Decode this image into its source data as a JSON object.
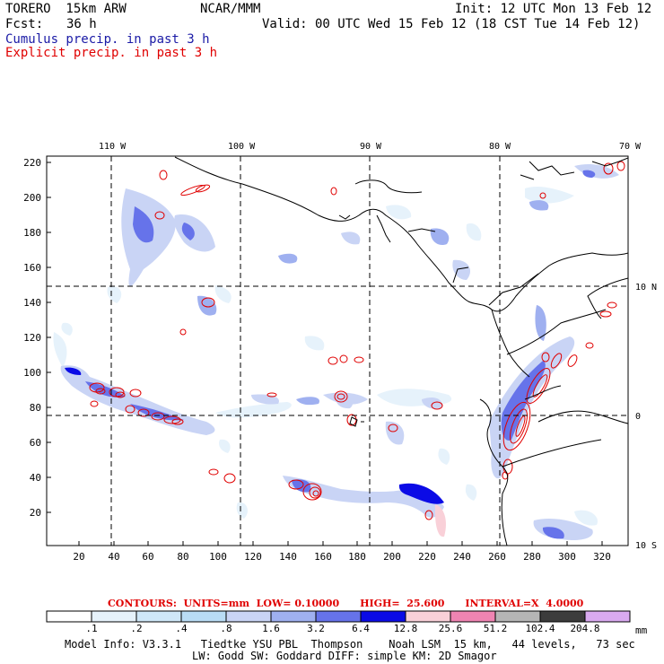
{
  "header": {
    "model": "TORERO  15km ARW",
    "org": "NCAR/MMM",
    "init": "Init: 12 UTC Mon 13 Feb 12",
    "fcst_label": "Fcst:",
    "fcst_value": "36 h",
    "valid": "Valid: 00 UTC Wed 15 Feb 12 (18 CST Tue 14 Feb 12)",
    "legend_cumulus": "Cumulus precip. in past 3 h",
    "legend_explicit": "Explicit precip. in past 3 h"
  },
  "map": {
    "lon_labels": [
      "110 W",
      "100 W",
      "90 W",
      "80 W",
      "70 W"
    ],
    "lat_labels": [
      "10 N",
      "0",
      "10 S"
    ],
    "y_ticks": [
      "220",
      "200",
      "180",
      "160",
      "140",
      "120",
      "100",
      "80",
      "60",
      "40",
      "20"
    ],
    "x_ticks": [
      "20",
      "40",
      "60",
      "80",
      "100",
      "120",
      "140",
      "160",
      "180",
      "200",
      "220",
      "240",
      "260",
      "280",
      "300",
      "320"
    ]
  },
  "colorbar": {
    "contours_text": "CONTOURS:  UNITS=mm  LOW= 0.10000      HIGH=  25.600      INTERVAL=X  4.0000",
    "labels": [
      ".1",
      ".2",
      ".4",
      ".8",
      "1.6",
      "3.2",
      "6.4",
      "12.8",
      "25.6",
      "51.2",
      "102.4",
      "204.8"
    ],
    "unit": "mm",
    "colors": [
      "#ffffff",
      "#e6f2fb",
      "#cfe7f8",
      "#b9dcf5",
      "#c9d4f5",
      "#9fb0f0",
      "#6673ea",
      "#0b0be6",
      "#f9d0d8",
      "#ef84b2",
      "#b5b5b5",
      "#3c3c3c",
      "#d9aaf0"
    ]
  },
  "footer": {
    "line1": "Model Info: V3.3.1   Tiedtke YSU PBL  Thompson    Noah LSM  15 km,   44 levels,   73 sec",
    "line2": "LW: Godd SW: Goddard DIFF: simple KM: 2D Smagor"
  }
}
